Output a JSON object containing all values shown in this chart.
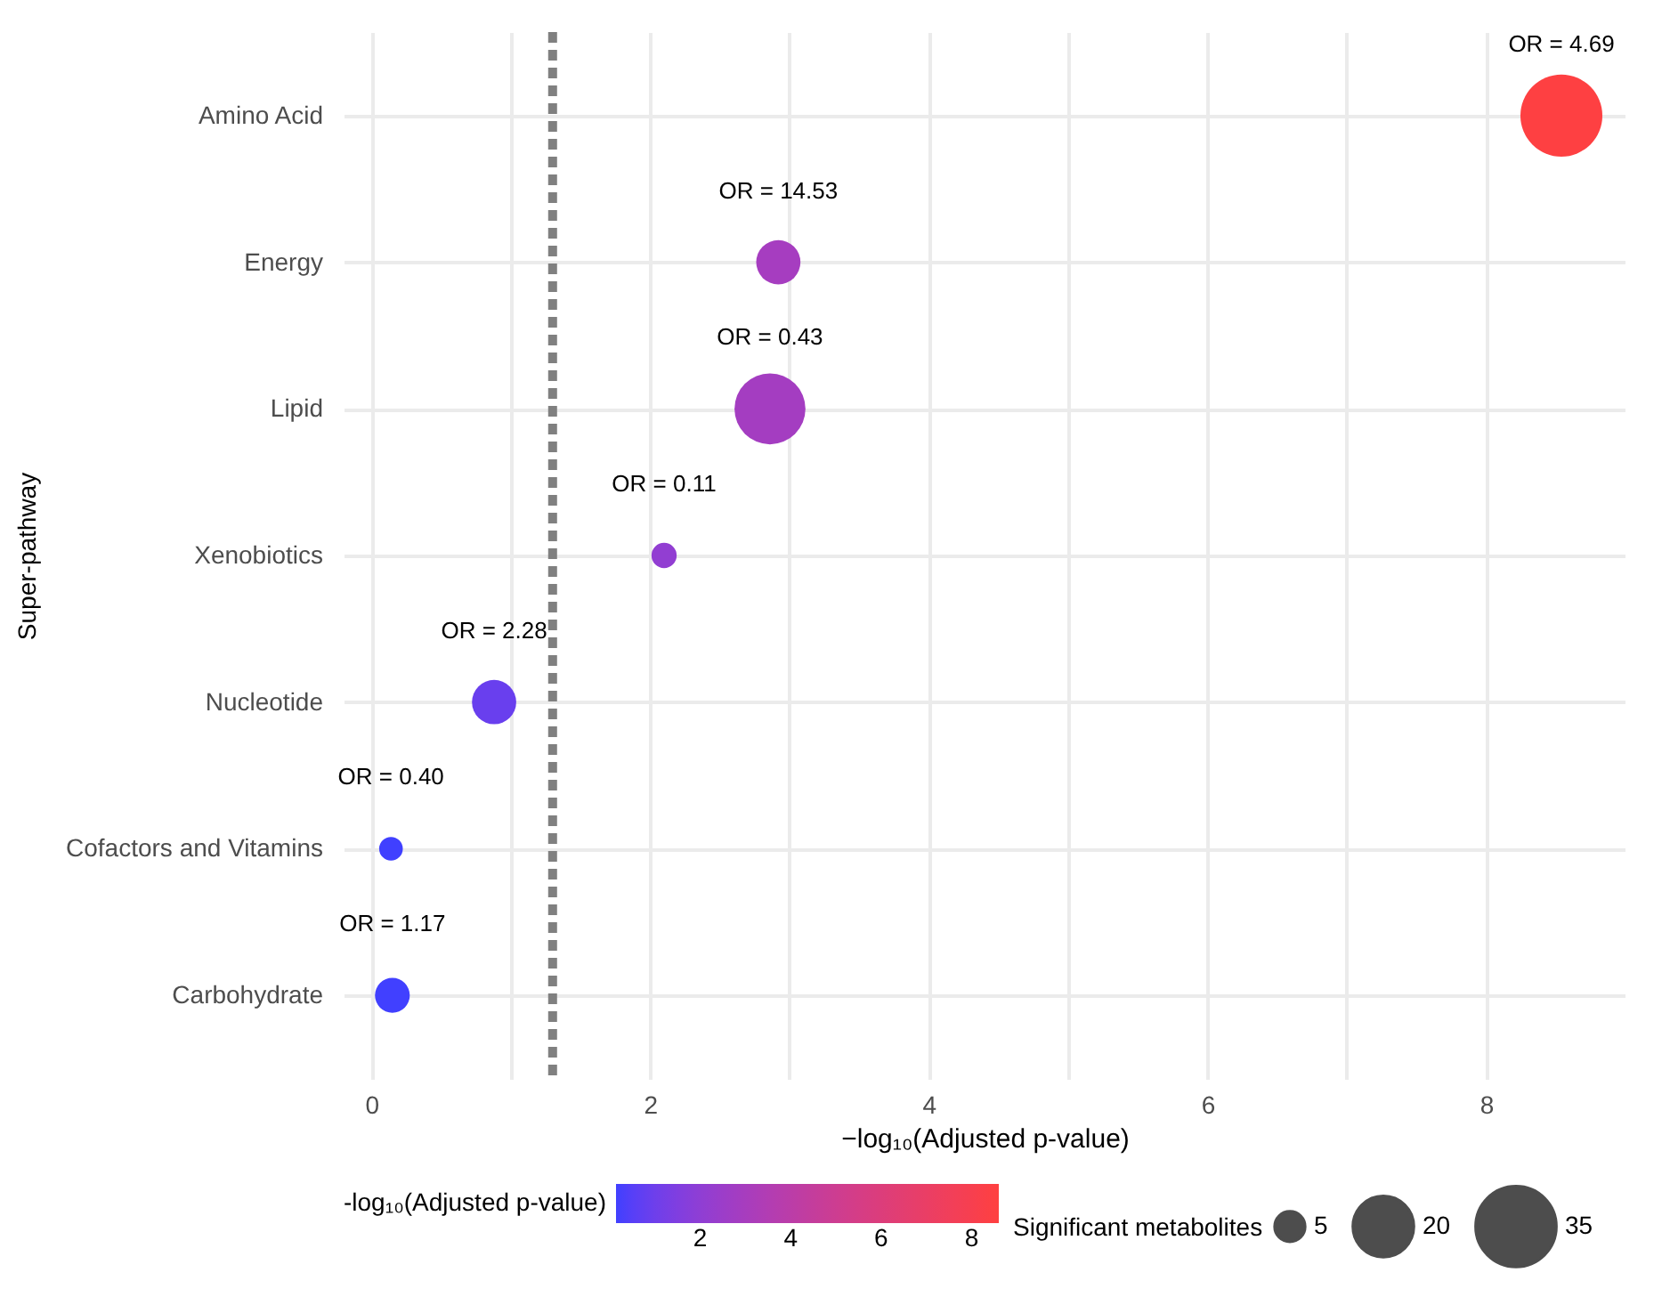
{
  "chart_data": {
    "type": "bubble",
    "xlabel": "−log₁₀(Adjusted p-value)",
    "ylabel": "Super-pathway",
    "legend_title": "Significant metabolites",
    "clabel": "-log₁₀(Adjusted p-value)",
    "categories": [
      "Amino Acid",
      "Energy",
      "Lipid",
      "Xenobiotics",
      "Nucleotide",
      "Cofactors and Vitamins",
      "Carbohydrate"
    ],
    "orientation": "horizontal",
    "values": [
      8.54,
      2.92,
      2.86,
      2.1,
      0.88,
      0.14,
      0.15
    ],
    "sizes": [
      36,
      10.5,
      27,
      3.4,
      10.5,
      3,
      6.5
    ],
    "cvalues": [
      8.54,
      2.92,
      2.86,
      2.1,
      0.88,
      0.14,
      0.15
    ],
    "size_legend": [
      5,
      20,
      35
    ],
    "clim": [
      0.14,
      8.6
    ],
    "cticks": [
      2,
      4,
      6,
      8
    ],
    "xlim": [
      -0.2,
      9
    ],
    "xticks": [
      0,
      {
        "value": 1,
        "label": null
      },
      2,
      {
        "value": 3,
        "label": null
      },
      4,
      {
        "value": 5,
        "label": null
      },
      6,
      {
        "value": 7,
        "label": null
      },
      8
    ],
    "ref_lines": [
      {
        "axis": "x",
        "value": 1.3,
        "color": "#808080",
        "line_style": "dashed"
      }
    ],
    "annotations": [
      {
        "text": "OR = 4.69",
        "x": 8.54,
        "y": "Amino Acid"
      },
      {
        "text": "OR = 14.53",
        "x": 2.92,
        "y": "Energy"
      },
      {
        "text": "OR = 0.43",
        "x": 2.86,
        "y": "Lipid"
      },
      {
        "text": "OR = 0.11",
        "x": 2.1,
        "y": "Xenobiotics"
      },
      {
        "text": "OR = 2.28",
        "x": 0.88,
        "y": "Nucleotide"
      },
      {
        "text": "OR = 0.40",
        "x": 0.14,
        "y": "Cofactors and Vitamins"
      },
      {
        "text": "OR = 1.17",
        "x": 0.15,
        "y": "Carbohydrate"
      }
    ],
    "grid": true
  }
}
